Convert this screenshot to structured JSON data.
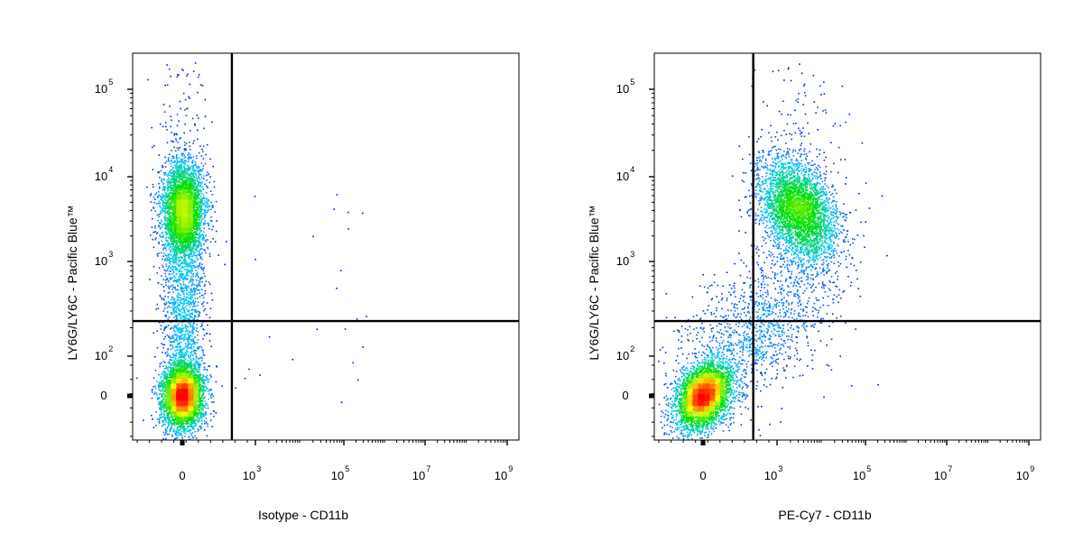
{
  "chart_data": [
    {
      "type": "scatter",
      "subtype": "flow-cytometry-density-dot-plot",
      "xlabel": "Isotype - CD11b",
      "ylabel": "LY6G/LY6C - Pacific Blue™",
      "x_scale": "biexponential",
      "y_scale": "biexponential",
      "x_ticks": [
        {
          "base": "0",
          "exp": ""
        },
        {
          "base": "10",
          "exp": "3"
        },
        {
          "base": "10",
          "exp": "5"
        },
        {
          "base": "10",
          "exp": "7"
        },
        {
          "base": "10",
          "exp": "9"
        }
      ],
      "y_ticks": [
        {
          "base": "0",
          "exp": ""
        },
        {
          "base": "10",
          "exp": "2"
        },
        {
          "base": "10",
          "exp": "3"
        },
        {
          "base": "10",
          "exp": "4"
        },
        {
          "base": "10",
          "exp": "5"
        }
      ],
      "quadrant_gate": {
        "x": 300,
        "y": 250
      },
      "populations": [
        {
          "name": "",
          "center": [
            0,
            0
          ],
          "density": "high",
          "share": 0.45
        },
        {
          "name": "",
          "center": [
            0,
            4000
          ],
          "density": "high",
          "share": 0.4
        },
        {
          "name": "",
          "center": [
            0,
            250
          ],
          "density": "low",
          "share": 0.15
        }
      ],
      "color_scale": [
        "#0000ff",
        "#00c8ff",
        "#00e000",
        "#ffff00",
        "#ff0000"
      ]
    },
    {
      "type": "scatter",
      "subtype": "flow-cytometry-density-dot-plot",
      "xlabel": "PE-Cy7 - CD11b",
      "ylabel": "LY6G/LY6C - Pacific Blue™",
      "x_scale": "biexponential",
      "y_scale": "biexponential",
      "x_ticks": [
        {
          "base": "0",
          "exp": ""
        },
        {
          "base": "10",
          "exp": "3"
        },
        {
          "base": "10",
          "exp": "5"
        },
        {
          "base": "10",
          "exp": "7"
        },
        {
          "base": "10",
          "exp": "9"
        }
      ],
      "y_ticks": [
        {
          "base": "0",
          "exp": ""
        },
        {
          "base": "10",
          "exp": "2"
        },
        {
          "base": "10",
          "exp": "3"
        },
        {
          "base": "10",
          "exp": "4"
        },
        {
          "base": "10",
          "exp": "5"
        }
      ],
      "quadrant_gate": {
        "x": 300,
        "y": 250
      },
      "populations": [
        {
          "name": "",
          "center": [
            0,
            0
          ],
          "density": "high",
          "share": 0.45
        },
        {
          "name": "",
          "center": [
            3000,
            4000
          ],
          "density": "high",
          "share": 0.4
        },
        {
          "name": "",
          "center": [
            300,
            200
          ],
          "density": "low",
          "share": 0.15
        }
      ],
      "color_scale": [
        "#0000ff",
        "#00c8ff",
        "#00e000",
        "#ffff00",
        "#ff0000"
      ]
    }
  ]
}
